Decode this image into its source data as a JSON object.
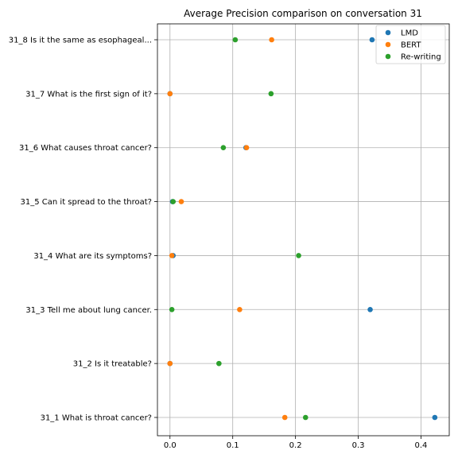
{
  "chart_data": {
    "type": "scatter",
    "title": "Average Precision comparison on conversation 31",
    "xlabel": "",
    "ylabel": "",
    "xlim": [
      -0.02,
      0.445
    ],
    "xticks": [
      0.0,
      0.1,
      0.2,
      0.3,
      0.4
    ],
    "xtick_labels": [
      "0.0",
      "0.1",
      "0.2",
      "0.3",
      "0.4"
    ],
    "categories": [
      "31_1 What is throat cancer?",
      "31_2 Is it treatable?",
      "31_3 Tell me about lung cancer.",
      "31_4 What are its symptoms?",
      "31_5 Can it spread to the throat?",
      "31_6 What causes throat cancer?",
      "31_7 What is the first sign of it?",
      "31_8 Is it the same as esophageal..."
    ],
    "grid": true,
    "legend_position": "top-right",
    "series": [
      {
        "name": "LMD",
        "color": "#1f77b4",
        "values": [
          0.422,
          0.0,
          0.319,
          0.005,
          0.004,
          0.121,
          0.0,
          0.322
        ]
      },
      {
        "name": "BERT",
        "color": "#ff7f0e",
        "values": [
          0.183,
          0.0,
          0.111,
          0.003,
          0.018,
          0.122,
          0.0,
          0.162
        ]
      },
      {
        "name": "Re-writing",
        "color": "#2ca02c",
        "values": [
          0.216,
          0.078,
          0.003,
          0.205,
          0.005,
          0.085,
          0.161,
          0.104
        ]
      }
    ]
  }
}
